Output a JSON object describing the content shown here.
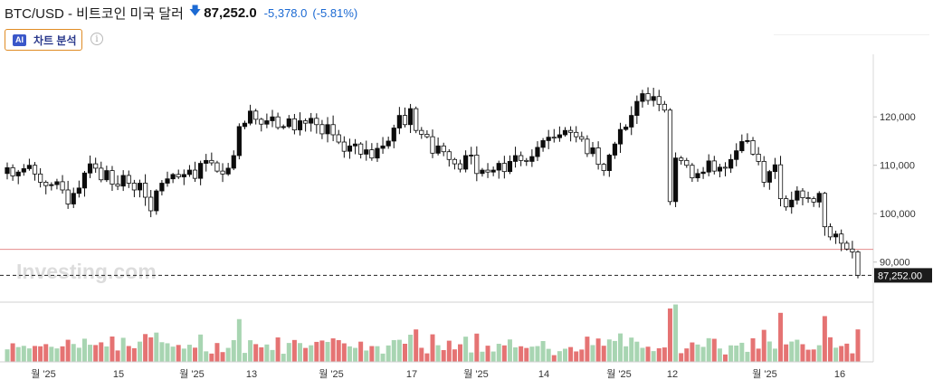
{
  "header": {
    "title": "BTC/USD - 비트코인 미국 달러",
    "arrow_icon": "arrow-down-icon",
    "price": "87,252.0",
    "change": "-5,378.0",
    "change_pct": "(-5.81%)",
    "change_color": "#1c6ad3"
  },
  "ai_button": {
    "badge": "AI",
    "label": "차트 분석"
  },
  "info_icon": "info-icon",
  "watermark": "Investing.com",
  "colors": {
    "up": "#0c0c0c",
    "down": "#ffffff",
    "stroke": "#0c0c0c",
    "vol_up": "#a8d5b2",
    "vol_down": "#e57373",
    "ref_line": "#e48d8d"
  },
  "chart_data": {
    "type": "candlestick",
    "y_axis": {
      "ticks": [
        90000,
        100000,
        110000,
        120000
      ],
      "tick_labels": [
        "90,000",
        "100,000",
        "110,000",
        "120,000"
      ],
      "ylim": [
        83000,
        128500
      ]
    },
    "x_axis": {
      "tick_labels": [
        "월 '25",
        "15",
        "월 '25",
        "13",
        "월 '25",
        "17",
        "월 '25",
        "14",
        "월 '25",
        "12",
        "월 '25",
        "16"
      ]
    },
    "last_price_label": "87,252.00",
    "last_price": 87252,
    "reference_line": 92630,
    "closes": [
      109500,
      107800,
      108600,
      109300,
      110000,
      108200,
      106500,
      105800,
      106000,
      106600,
      104900,
      102000,
      104200,
      105300,
      108400,
      110300,
      109400,
      107000,
      108900,
      106100,
      105700,
      107900,
      106300,
      104900,
      106300,
      103400,
      100600,
      104700,
      106300,
      107200,
      108100,
      107600,
      108100,
      109000,
      107300,
      110400,
      111000,
      110500,
      108800,
      108200,
      109400,
      112000,
      118000,
      118700,
      121200,
      119500,
      118500,
      119200,
      120000,
      117800,
      118000,
      119600,
      117300,
      119200,
      118700,
      119700,
      118400,
      116500,
      118400,
      116300,
      114800,
      112900,
      114000,
      114400,
      112300,
      113200,
      111500,
      113500,
      114000,
      115000,
      117700,
      120300,
      118400,
      121700,
      117200,
      116400,
      115900,
      112500,
      114000,
      112800,
      111200,
      110300,
      109200,
      112000,
      112100,
      108300,
      109000,
      108600,
      109000,
      110400,
      108700,
      110800,
      112000,
      111000,
      110800,
      111800,
      113700,
      115100,
      115800,
      115700,
      116300,
      117200,
      116800,
      115900,
      115400,
      112400,
      113600,
      110200,
      108900,
      112100,
      114400,
      117400,
      117900,
      120300,
      123200,
      124800,
      123400,
      124200,
      122600,
      121400,
      102500,
      111500,
      111000,
      110000,
      107400,
      108300,
      108600,
      110900,
      108800,
      109600,
      109400,
      111200,
      113000,
      114900,
      115100,
      112300,
      110800,
      106500,
      108700,
      110100,
      103100,
      101400,
      102800,
      104700,
      103300,
      103100,
      102400,
      104200,
      97300,
      95200,
      95800,
      93900,
      92700,
      92100,
      87252
    ]
  }
}
